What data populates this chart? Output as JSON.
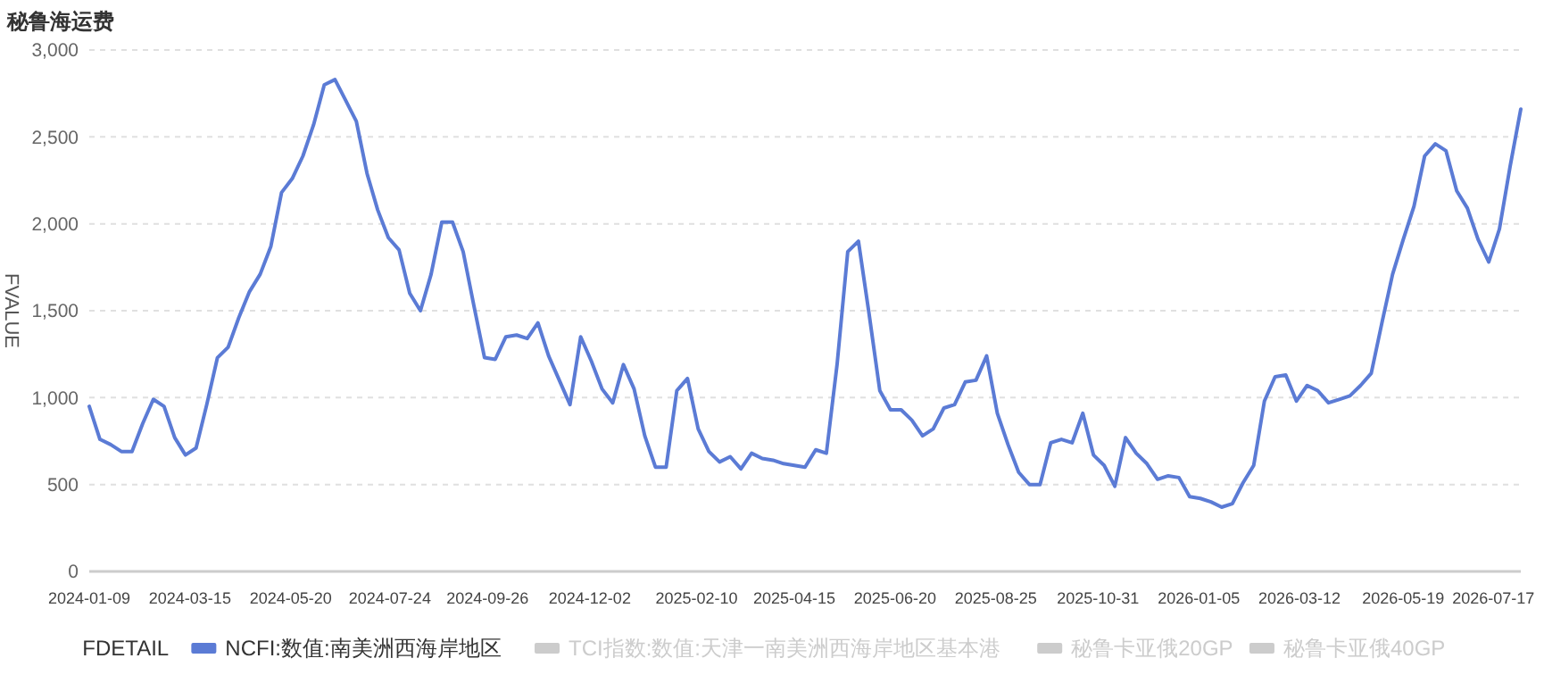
{
  "chart_data": {
    "type": "line",
    "title": "秘鲁海运费",
    "ylabel": "FVALUE",
    "legend_title": "FDETAIL",
    "legend": "bottom",
    "grid": "y",
    "marker": "none",
    "line_style": "solid",
    "x": [
      "2024-01-09",
      "2024-01-16",
      "2024-01-23",
      "2024-01-30",
      "2024-02-06",
      "2024-02-13",
      "2024-02-20",
      "2024-02-27",
      "2024-03-05",
      "2024-03-12",
      "2024-03-19",
      "2024-03-26",
      "2024-04-02",
      "2024-04-09",
      "2024-04-16",
      "2024-04-23",
      "2024-04-30",
      "2024-05-07",
      "2024-05-14",
      "2024-05-21",
      "2024-05-28",
      "2024-06-04",
      "2024-06-11",
      "2024-06-18",
      "2024-06-25",
      "2024-07-02",
      "2024-07-09",
      "2024-07-16",
      "2024-07-23",
      "2024-07-30",
      "2024-08-06",
      "2024-08-13",
      "2024-08-20",
      "2024-08-27",
      "2024-09-03",
      "2024-09-10",
      "2024-09-17",
      "2024-09-24",
      "2024-10-01",
      "2024-10-08",
      "2024-10-15",
      "2024-10-22",
      "2024-10-29",
      "2024-11-05",
      "2024-11-12",
      "2024-11-19",
      "2024-11-26",
      "2024-12-03",
      "2024-12-10",
      "2024-12-17",
      "2024-12-24",
      "2024-12-31",
      "2025-01-07",
      "2025-01-14",
      "2025-01-21",
      "2025-01-28",
      "2025-02-04",
      "2025-02-11",
      "2025-02-18",
      "2025-02-25",
      "2025-03-04",
      "2025-03-11",
      "2025-03-18",
      "2025-03-25",
      "2025-04-01",
      "2025-04-08",
      "2025-04-15",
      "2025-04-22",
      "2025-04-29",
      "2025-05-06",
      "2025-05-13",
      "2025-05-20",
      "2025-05-27",
      "2025-06-03",
      "2025-06-10",
      "2025-06-17",
      "2025-06-24",
      "2025-07-01",
      "2025-07-08",
      "2025-07-15",
      "2025-07-22",
      "2025-07-29",
      "2025-08-05",
      "2025-08-12",
      "2025-08-19",
      "2025-08-26",
      "2025-09-02",
      "2025-09-09",
      "2025-09-16",
      "2025-09-23",
      "2025-09-30",
      "2025-10-07",
      "2025-10-14",
      "2025-10-21",
      "2025-10-28",
      "2025-11-04",
      "2025-11-11",
      "2025-11-18",
      "2025-11-25",
      "2025-12-02",
      "2025-12-09",
      "2025-12-16",
      "2025-12-23",
      "2025-12-30",
      "2026-01-06",
      "2026-01-13",
      "2026-01-20",
      "2026-01-27",
      "2026-02-03",
      "2026-02-10",
      "2026-02-17",
      "2026-02-24",
      "2026-03-03",
      "2026-03-10",
      "2026-03-17",
      "2026-03-24",
      "2026-03-31",
      "2026-04-07",
      "2026-04-14",
      "2026-04-21",
      "2026-04-28",
      "2026-05-05",
      "2026-05-12",
      "2026-05-19",
      "2026-05-26",
      "2026-06-02",
      "2026-06-09",
      "2026-06-16",
      "2026-06-23",
      "2026-06-30",
      "2026-07-07",
      "2026-07-14",
      "2026-07-21",
      "2026-07-28",
      "2026-08-04"
    ],
    "xlim": [
      "2024-01-09",
      "2026-08-04"
    ],
    "xticks": [
      "2024-01-09",
      "2024-03-15",
      "2024-05-20",
      "2024-07-24",
      "2024-09-26",
      "2024-12-02",
      "2025-02-10",
      "2025-04-15",
      "2025-06-20",
      "2025-08-25",
      "2025-10-31",
      "2026-01-05",
      "2026-03-12",
      "2026-05-19",
      "2026-07-17"
    ],
    "ylim": [
      0,
      3000
    ],
    "yticks": [
      {
        "value": 0,
        "label": "0"
      },
      {
        "value": 500,
        "label": "500"
      },
      {
        "value": 1000,
        "label": "1,000"
      },
      {
        "value": 1500,
        "label": "1,500"
      },
      {
        "value": 2000,
        "label": "2,000"
      },
      {
        "value": 2500,
        "label": "2,500"
      },
      {
        "value": 3000,
        "label": "3,000"
      }
    ],
    "series": [
      {
        "name": "NCFI:数值:南美洲西海岸地区",
        "color": "#5b7bd5",
        "values": [
          950,
          760,
          730,
          690,
          690,
          850,
          990,
          950,
          770,
          670,
          710,
          960,
          1230,
          1290,
          1460,
          1610,
          1710,
          1870,
          2180,
          2260,
          2390,
          2570,
          2800,
          2830,
          2710,
          2590,
          2290,
          2080,
          1920,
          1850,
          1600,
          1500,
          1710,
          2010,
          2010,
          1840,
          1530,
          1230,
          1220,
          1350,
          1360,
          1340,
          1430,
          1240,
          1100,
          960,
          1350,
          1210,
          1050,
          970,
          1190,
          1050,
          780,
          600,
          600,
          1040,
          1110,
          820,
          690,
          630,
          660,
          590,
          680,
          650,
          640,
          620,
          610,
          600,
          700,
          680,
          1190,
          1840,
          1900,
          1480,
          1040,
          930,
          930,
          870,
          780,
          820,
          940,
          960,
          1090,
          1100,
          1240,
          910,
          730,
          570,
          500,
          500,
          740,
          760,
          740,
          910,
          670,
          610,
          490,
          770,
          680,
          620,
          530,
          550,
          540,
          430,
          420,
          400,
          370,
          390,
          510,
          610,
          980,
          1120,
          1130,
          980,
          1070,
          1040,
          970,
          990,
          1010,
          1070,
          1140,
          1430,
          1710,
          1910,
          2100,
          2390,
          2460,
          2420,
          2190,
          2090,
          1910,
          1780,
          1970,
          2330,
          2660
        ]
      },
      {
        "name": "TCI指数:数值:天津一南美洲西海岸地区基本港",
        "color": "#cccccc",
        "values": [
          null,
          null,
          null,
          null,
          null,
          null,
          null,
          null,
          null,
          null,
          null,
          null,
          null,
          null,
          null,
          null,
          null,
          null,
          null,
          null,
          null,
          null,
          null,
          null,
          null,
          null,
          null,
          null,
          null,
          null,
          null,
          null,
          null,
          null,
          null,
          null,
          null,
          null,
          null,
          null,
          null,
          null,
          null,
          null,
          null,
          null,
          null,
          null,
          null,
          null,
          null,
          null,
          null,
          null,
          null,
          null,
          null,
          null,
          null,
          null,
          null,
          null,
          null,
          null,
          null,
          null,
          null,
          null,
          null,
          null,
          null,
          null,
          null,
          null,
          null,
          null,
          null,
          null,
          null,
          null,
          null,
          null,
          null,
          null,
          null,
          null,
          null,
          null,
          null,
          null,
          null,
          null,
          null,
          null,
          null,
          null,
          null,
          null,
          null,
          null,
          null,
          null,
          null,
          null,
          null,
          null,
          null,
          null,
          null,
          null,
          null,
          null,
          null,
          null,
          null,
          null,
          null,
          null,
          null,
          null,
          null,
          null,
          null,
          null,
          null,
          null,
          null,
          null,
          null,
          null,
          null,
          null,
          null,
          null,
          null
        ]
      },
      {
        "name": "秘鲁卡亚俄20GP",
        "color": "#cccccc",
        "values": [
          null,
          null,
          null,
          null,
          null,
          null,
          null,
          null,
          null,
          null,
          null,
          null,
          null,
          null,
          null,
          null,
          null,
          null,
          null,
          null,
          null,
          null,
          null,
          null,
          null,
          null,
          null,
          null,
          null,
          null,
          null,
          null,
          null,
          null,
          null,
          null,
          null,
          null,
          null,
          null,
          null,
          null,
          null,
          null,
          null,
          null,
          null,
          null,
          null,
          null,
          null,
          null,
          null,
          null,
          null,
          null,
          null,
          null,
          null,
          null,
          null,
          null,
          null,
          null,
          null,
          null,
          null,
          null,
          null,
          null,
          null,
          null,
          null,
          null,
          null,
          null,
          null,
          null,
          null,
          null,
          null,
          null,
          null,
          null,
          null,
          null,
          null,
          null,
          null,
          null,
          null,
          null,
          null,
          null,
          null,
          null,
          null,
          null,
          null,
          null,
          null,
          null,
          null,
          null,
          null,
          null,
          null,
          null,
          null,
          null,
          null,
          null,
          null,
          null,
          null,
          null,
          null,
          null,
          null,
          null,
          null,
          null,
          null,
          null,
          null,
          null,
          null,
          null,
          null,
          null,
          null,
          null,
          null,
          null,
          null
        ]
      },
      {
        "name": "秘鲁卡亚俄40GP",
        "color": "#cccccc",
        "values": [
          null,
          null,
          null,
          null,
          null,
          null,
          null,
          null,
          null,
          null,
          null,
          null,
          null,
          null,
          null,
          null,
          null,
          null,
          null,
          null,
          null,
          null,
          null,
          null,
          null,
          null,
          null,
          null,
          null,
          null,
          null,
          null,
          null,
          null,
          null,
          null,
          null,
          null,
          null,
          null,
          null,
          null,
          null,
          null,
          null,
          null,
          null,
          null,
          null,
          null,
          null,
          null,
          null,
          null,
          null,
          null,
          null,
          null,
          null,
          null,
          null,
          null,
          null,
          null,
          null,
          null,
          null,
          null,
          null,
          null,
          null,
          null,
          null,
          null,
          null,
          null,
          null,
          null,
          null,
          null,
          null,
          null,
          null,
          null,
          null,
          null,
          null,
          null,
          null,
          null,
          null,
          null,
          null,
          null,
          null,
          null,
          null,
          null,
          null,
          null,
          null,
          null,
          null,
          null,
          null,
          null,
          null,
          null,
          null,
          null,
          null,
          null,
          null,
          null,
          null,
          null,
          null,
          null,
          null,
          null,
          null,
          null,
          null,
          null,
          null,
          null,
          null,
          null,
          null,
          null,
          null,
          null,
          null,
          null,
          null
        ]
      }
    ]
  }
}
